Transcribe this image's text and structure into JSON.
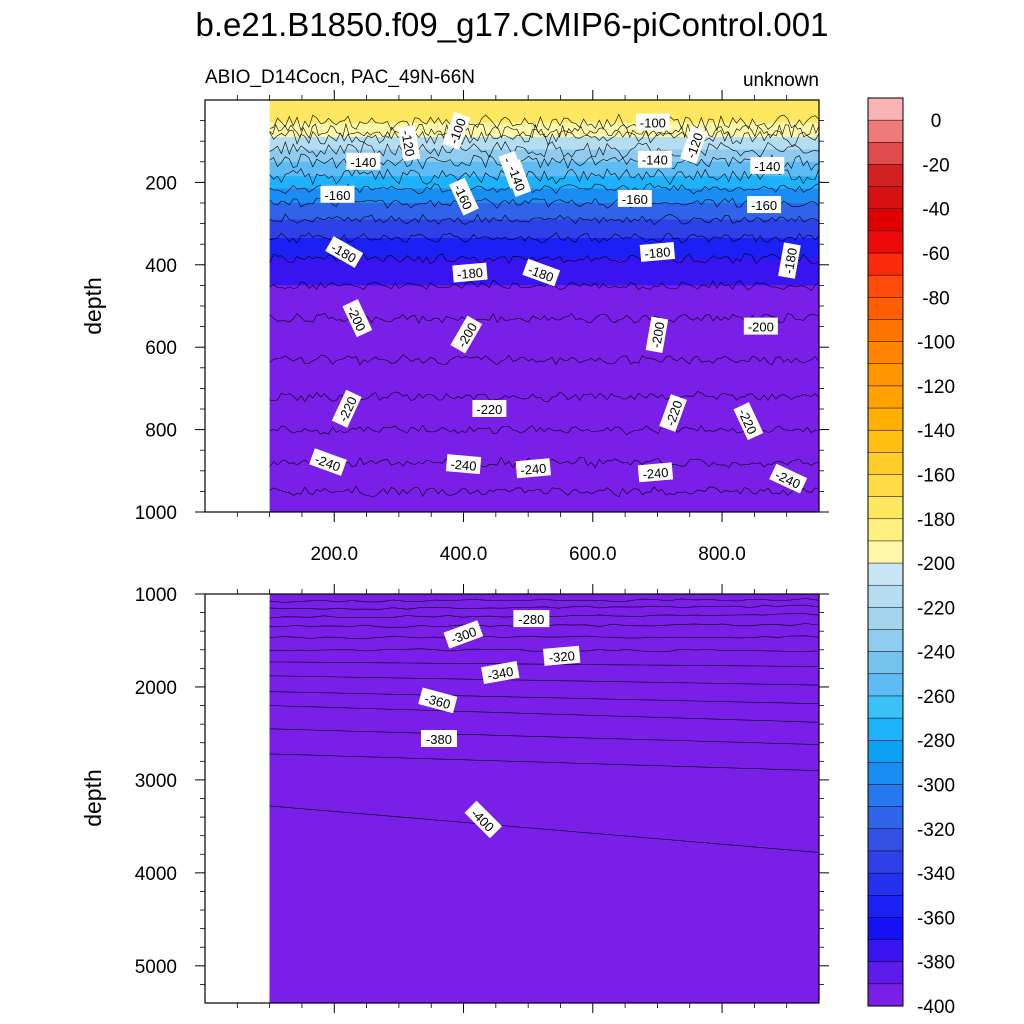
{
  "title": "b.e21.B1850.f09_g17.CMIP6-piControl.001",
  "subtitle_left": "ABIO_D14Cocn, PAC_49N-66N",
  "subtitle_right": "unknown",
  "chart_data": [
    {
      "type": "heatmap",
      "panel": "upper",
      "variable": "ABIO_D14Cocn",
      "region": "PAC_49N-66N",
      "x_range": [
        0,
        950
      ],
      "data_x_range": [
        100,
        950
      ],
      "xticks": [
        "200.0",
        "400.0",
        "600.0",
        "800.0"
      ],
      "xtick_values": [
        200,
        400,
        600,
        800
      ],
      "ylabel": "depth",
      "ylim": [
        0,
        1000
      ],
      "y_inverted": true,
      "yticks": [
        "200",
        "400",
        "600",
        "800",
        "1000"
      ],
      "ytick_values": [
        200,
        400,
        600,
        800,
        1000
      ],
      "isolines_depth": [
        {
          "level": -90,
          "depth": 55
        },
        {
          "level": -100,
          "depth": 90
        },
        {
          "level": -110,
          "depth": 120
        },
        {
          "level": -120,
          "depth": 150
        },
        {
          "level": -130,
          "depth": 185
        },
        {
          "level": -140,
          "depth": 215
        },
        {
          "level": -150,
          "depth": 250
        },
        {
          "level": -160,
          "depth": 290
        },
        {
          "level": -170,
          "depth": 335
        },
        {
          "level": -180,
          "depth": 385
        },
        {
          "level": -190,
          "depth": 450
        },
        {
          "level": -200,
          "depth": 530
        },
        {
          "level": -210,
          "depth": 630
        },
        {
          "level": -220,
          "depth": 720
        },
        {
          "level": -230,
          "depth": 800
        },
        {
          "level": -240,
          "depth": 880
        },
        {
          "level": -250,
          "depth": 950
        }
      ],
      "contour_labels": [
        {
          "text": "-100",
          "x": 390,
          "depth": 75,
          "rotate": -70
        },
        {
          "text": "-120",
          "x": 315,
          "depth": 105,
          "rotate": 80
        },
        {
          "text": "-140",
          "x": 245,
          "depth": 150,
          "rotate": 0
        },
        {
          "text": "-140",
          "x": 475,
          "depth": 170,
          "rotate": 70
        },
        {
          "text": "-160",
          "x": 400,
          "depth": 235,
          "rotate": 65
        },
        {
          "text": "-160",
          "x": 205,
          "depth": 230,
          "rotate": 0
        },
        {
          "text": "-180",
          "x": 215,
          "depth": 370,
          "rotate": 30
        },
        {
          "text": "-180",
          "x": 410,
          "depth": 420,
          "rotate": -5
        },
        {
          "text": "-180",
          "x": 520,
          "depth": 420,
          "rotate": 20
        },
        {
          "text": "-180",
          "x": 700,
          "depth": 370,
          "rotate": -5
        },
        {
          "text": "-180",
          "x": 905,
          "depth": 390,
          "rotate": -80
        },
        {
          "text": "-200",
          "x": 235,
          "depth": 530,
          "rotate": 65
        },
        {
          "text": "-200",
          "x": 405,
          "depth": 570,
          "rotate": -60
        },
        {
          "text": "-200",
          "x": 700,
          "depth": 570,
          "rotate": -80
        },
        {
          "text": "-200",
          "x": 860,
          "depth": 550,
          "rotate": 0
        },
        {
          "text": "-220",
          "x": 220,
          "depth": 750,
          "rotate": -65
        },
        {
          "text": "-220",
          "x": 440,
          "depth": 750,
          "rotate": 0
        },
        {
          "text": "-220",
          "x": 725,
          "depth": 760,
          "rotate": -70
        },
        {
          "text": "-220",
          "x": 840,
          "depth": 780,
          "rotate": 65
        },
        {
          "text": "-240",
          "x": 190,
          "depth": 880,
          "rotate": 20
        },
        {
          "text": "-240",
          "x": 400,
          "depth": 885,
          "rotate": 5
        },
        {
          "text": "-240",
          "x": 508,
          "depth": 895,
          "rotate": -5
        },
        {
          "text": "-240",
          "x": 697,
          "depth": 905,
          "rotate": -5
        },
        {
          "text": "-240",
          "x": 902,
          "depth": 920,
          "rotate": 25
        },
        {
          "text": "-100",
          "x": 693,
          "depth": 55,
          "rotate": 0
        },
        {
          "text": "-140",
          "x": 696,
          "depth": 145,
          "rotate": 0
        },
        {
          "text": "-120",
          "x": 757,
          "depth": 110,
          "rotate": -70
        },
        {
          "text": "-140",
          "x": 870,
          "depth": 160,
          "rotate": 0
        },
        {
          "text": "-160",
          "x": 665,
          "depth": 240,
          "rotate": 0
        },
        {
          "text": "-160",
          "x": 865,
          "depth": 255,
          "rotate": 0
        },
        {
          "text": "-140",
          "x": 483,
          "depth": 190,
          "rotate": 70
        }
      ]
    },
    {
      "type": "heatmap",
      "panel": "lower",
      "variable": "ABIO_D14Cocn",
      "region": "PAC_49N-66N",
      "x_range": [
        0,
        950
      ],
      "data_x_range": [
        100,
        950
      ],
      "ylabel": "depth",
      "ylim": [
        1000,
        5400
      ],
      "y_inverted": true,
      "yticks": [
        "1000",
        "2000",
        "3000",
        "4000",
        "5000"
      ],
      "ytick_values": [
        1000,
        2000,
        3000,
        4000,
        5000
      ],
      "isolines_depth": [
        {
          "level": -270,
          "depth_west": 1080,
          "depth_east": 1060
        },
        {
          "level": -280,
          "depth_west": 1160,
          "depth_east": 1130
        },
        {
          "level": -290,
          "depth_west": 1250,
          "depth_east": 1220
        },
        {
          "level": -300,
          "depth_west": 1350,
          "depth_east": 1330
        },
        {
          "level": -310,
          "depth_west": 1470,
          "depth_east": 1460
        },
        {
          "level": -320,
          "depth_west": 1600,
          "depth_east": 1610
        },
        {
          "level": -330,
          "depth_west": 1730,
          "depth_east": 1780
        },
        {
          "level": -340,
          "depth_west": 1880,
          "depth_east": 1980
        },
        {
          "level": -350,
          "depth_west": 2050,
          "depth_east": 2180
        },
        {
          "level": -360,
          "depth_west": 2200,
          "depth_east": 2380
        },
        {
          "level": -370,
          "depth_west": 2450,
          "depth_east": 2620
        },
        {
          "level": -380,
          "depth_west": 2720,
          "depth_east": 2900
        },
        {
          "level": -390,
          "depth_west": 3280,
          "depth_east": 3780
        }
      ],
      "contour_labels": [
        {
          "text": "-280",
          "x": 505,
          "depth": 1270,
          "rotate": 0
        },
        {
          "text": "-300",
          "x": 400,
          "depth": 1440,
          "rotate": -20
        },
        {
          "text": "-320",
          "x": 552,
          "depth": 1670,
          "rotate": -5
        },
        {
          "text": "-340",
          "x": 457,
          "depth": 1850,
          "rotate": -10
        },
        {
          "text": "-360",
          "x": 360,
          "depth": 2150,
          "rotate": 15
        },
        {
          "text": "-380",
          "x": 362,
          "depth": 2560,
          "rotate": 0
        },
        {
          "text": "-400",
          "x": 430,
          "depth": 3430,
          "rotate": 45
        }
      ]
    }
  ],
  "colorbar": {
    "labels": [
      "0",
      "-20",
      "-40",
      "-60",
      "-80",
      "-100",
      "-120",
      "-140",
      "-160",
      "-180",
      "-200",
      "-220",
      "-240",
      "-260",
      "-280",
      "-300",
      "-320",
      "-340",
      "-360",
      "-380",
      "-400"
    ],
    "levels": [
      5,
      0,
      -5,
      -10,
      -15,
      -20,
      -25,
      -30,
      -35,
      -40,
      -45,
      -50,
      -55,
      -60,
      -65,
      -70,
      -75,
      -80,
      -85,
      -90,
      -95,
      -100,
      -105,
      -110,
      -115,
      -120,
      -125,
      -130,
      -135,
      -140,
      -145,
      -150,
      -155,
      -160,
      -165,
      -170,
      -175,
      -180,
      -185,
      -190,
      -195,
      -200,
      -205,
      -210,
      -215,
      -220,
      -225,
      -230,
      -235,
      -240,
      -245,
      -250,
      -255,
      -260,
      -265,
      -270,
      -275,
      -280,
      -285,
      -290,
      -295,
      -300,
      -305,
      -310,
      -315,
      -320,
      -325,
      -330,
      -335,
      -340,
      -345,
      -350,
      -355,
      -360,
      -365,
      -370,
      -375,
      -380,
      -385,
      -390,
      -395,
      -400,
      -405
    ],
    "colors": [
      "#f9b3b3",
      "#ef7a7a",
      "#e04b4b",
      "#d32020",
      "#d71010",
      "#e00000",
      "#ef0a0a",
      "#fa2a0a",
      "#ff4a0a",
      "#ff5f00",
      "#ff7300",
      "#ff8500",
      "#ff9500",
      "#ffa200",
      "#ffb000",
      "#ffbe10",
      "#ffcd2a",
      "#ffdb45",
      "#ffe760",
      "#fff080",
      "#fff7a8",
      "#c8e6f5",
      "#b5ddf1",
      "#a3d5ef",
      "#8fcbee",
      "#75c2ef",
      "#5ebbf3",
      "#3bc0f8",
      "#1db2f9",
      "#0aa1f5",
      "#1a8df2",
      "#2578ef",
      "#2f64ea",
      "#3451e6",
      "#3040e8",
      "#2630ef",
      "#1b20f5",
      "#1610f7",
      "#3a14f0",
      "#5c1aeb",
      "#7a1fe8"
    ]
  }
}
